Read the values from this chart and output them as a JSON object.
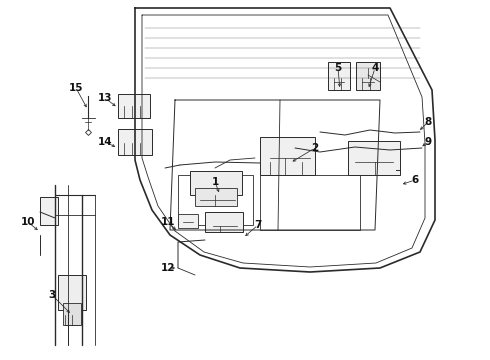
{
  "bg_color": "#ffffff",
  "line_color": "#2a2a2a",
  "label_color": "#111111",
  "font_size": 7.5,
  "font_size_small": 6.5
}
